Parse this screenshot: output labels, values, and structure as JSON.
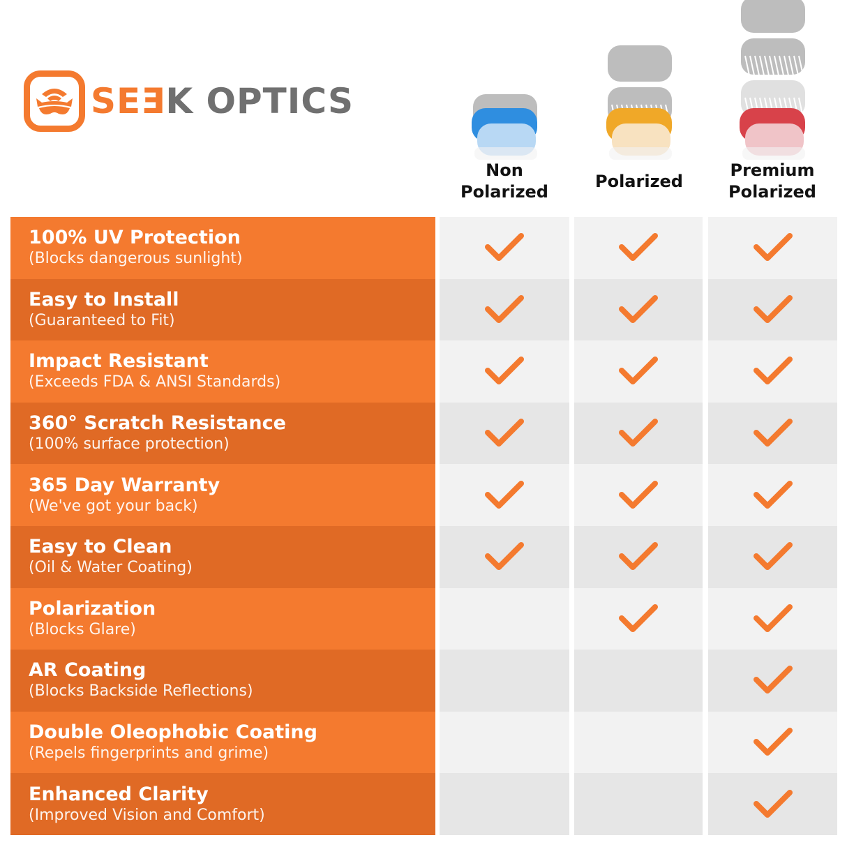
{
  "brand": {
    "name_part1": "SEƎ",
    "name_part2": "K OPTICS",
    "accent": "#f47a2f",
    "dark_accent": "#e06a25",
    "icon": "goggles-logo"
  },
  "columns": [
    {
      "label": "Non Polarized",
      "lens_color": "#2f8ee0",
      "lens_light": "#b8d8f4",
      "layers": 1
    },
    {
      "label": "Polarized",
      "lens_color": "#f0a828",
      "lens_light": "#f8e2c0",
      "layers": 2
    },
    {
      "label": "Premium Polarized",
      "lens_color": "#d8424a",
      "lens_light": "#f0c4c8",
      "layers": 3
    }
  ],
  "features": [
    {
      "title": "100% UV Protection",
      "subtitle": "(Blocks dangerous sunlight)",
      "checks": [
        true,
        true,
        true
      ]
    },
    {
      "title": "Easy to Install",
      "subtitle": "(Guaranteed to Fit)",
      "checks": [
        true,
        true,
        true
      ]
    },
    {
      "title": "Impact Resistant",
      "subtitle": "(Exceeds FDA & ANSI Standards)",
      "checks": [
        true,
        true,
        true
      ]
    },
    {
      "title": "360° Scratch Resistance",
      "subtitle": "(100% surface protection)",
      "checks": [
        true,
        true,
        true
      ]
    },
    {
      "title": "365 Day Warranty",
      "subtitle": "(We've got your back)",
      "checks": [
        true,
        true,
        true
      ]
    },
    {
      "title": "Easy to Clean",
      "subtitle": "(Oil & Water Coating)",
      "checks": [
        true,
        true,
        true
      ]
    },
    {
      "title": "Polarization",
      "subtitle": "(Blocks Glare)",
      "checks": [
        false,
        true,
        true
      ]
    },
    {
      "title": "AR Coating",
      "subtitle": "(Blocks Backside Reflections)",
      "checks": [
        false,
        false,
        true
      ]
    },
    {
      "title": "Double Oleophobic Coating",
      "subtitle": "(Repels fingerprints and grime)",
      "checks": [
        false,
        false,
        true
      ]
    },
    {
      "title": "Enhanced Clarity",
      "subtitle": "(Improved Vision and Comfort)",
      "checks": [
        false,
        false,
        true
      ]
    }
  ]
}
